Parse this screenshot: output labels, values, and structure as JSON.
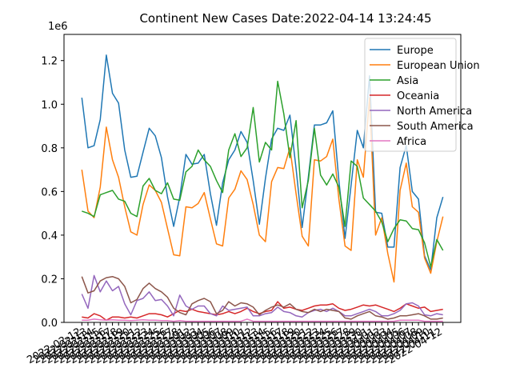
{
  "chart_data": {
    "type": "line",
    "title": "Continent New Cases Date:2022-04-14 13:24:45",
    "xlabel": "",
    "ylabel": "",
    "y_offset_label": "1e6",
    "ylim": [
      0,
      1320000
    ],
    "y_ticks": [
      0.0,
      0.2,
      0.4,
      0.6,
      0.8,
      1.0,
      1.2
    ],
    "grid": false,
    "legend_position": "top-right",
    "x_tick_labels": [
      "2022-02-12",
      "2022-02-13",
      "2022-02-14",
      "2022-02-15",
      "2022-02-16",
      "2022-02-17",
      "2022-02-18",
      "2022-02-19",
      "2022-02-20",
      "2022-02-21",
      "2022-02-22",
      "2022-02-23",
      "2022-02-24",
      "2022-02-25",
      "2022-02-26",
      "2022-02-27",
      "2022-02-28",
      "2022-03-01",
      "2022-03-02",
      "2022-03-03",
      "2022-03-04",
      "2022-03-05",
      "2022-03-06",
      "2022-03-07",
      "2022-03-08",
      "2022-03-09",
      "2022-03-10",
      "2022-03-11",
      "2022-03-12",
      "2022-03-13",
      "2022-03-14",
      "2022-03-15",
      "2022-03-16",
      "2022-03-17",
      "2022-03-18",
      "2022-03-19",
      "2022-03-20",
      "2022-03-21",
      "2022-03-22",
      "2022-03-23",
      "2022-03-24",
      "2022-03-25",
      "2022-03-26",
      "2022-03-27",
      "2022-03-28",
      "2022-03-29",
      "2022-03-30",
      "2022-03-31",
      "2022-04-01",
      "2022-04-02",
      "2022-04-03",
      "2022-04-04",
      "2022-04-05",
      "2022-04-06",
      "2022-04-07",
      "2022-04-08",
      "2022-04-09",
      "2022-04-10",
      "2022-04-11",
      "2022-04-12"
    ],
    "series": [
      {
        "name": "Europe",
        "color": "#1f77b4",
        "values": [
          1030000,
          800000,
          810000,
          930000,
          1225000,
          1050000,
          1005000,
          790000,
          665000,
          670000,
          780000,
          890000,
          855000,
          755000,
          575000,
          440000,
          575000,
          770000,
          725000,
          730000,
          770000,
          590000,
          445000,
          640000,
          745000,
          790000,
          875000,
          825000,
          650000,
          450000,
          660000,
          840000,
          890000,
          880000,
          950000,
          705000,
          435000,
          665000,
          905000,
          905000,
          915000,
          970000,
          650000,
          385000,
          630000,
          880000,
          800000,
          1130000,
          505000,
          500000,
          345000,
          345000,
          710000,
          810000,
          600000,
          565000,
          305000,
          240000,
          480000,
          575000
        ]
      },
      {
        "name": "European Union",
        "color": "#ff7f0e",
        "values": [
          700000,
          510000,
          480000,
          620000,
          895000,
          745000,
          665000,
          530000,
          415000,
          400000,
          540000,
          630000,
          605000,
          550000,
          430000,
          310000,
          305000,
          530000,
          525000,
          545000,
          595000,
          475000,
          360000,
          350000,
          570000,
          610000,
          695000,
          655000,
          540000,
          400000,
          370000,
          645000,
          710000,
          705000,
          800000,
          590000,
          395000,
          350000,
          745000,
          740000,
          760000,
          840000,
          565000,
          350000,
          330000,
          745000,
          665000,
          1030000,
          400000,
          480000,
          315000,
          185000,
          605000,
          730000,
          530000,
          505000,
          295000,
          225000,
          370000,
          485000
        ]
      },
      {
        "name": "Asia",
        "color": "#2ca02c",
        "values": [
          510000,
          500000,
          485000,
          585000,
          595000,
          605000,
          565000,
          555000,
          500000,
          485000,
          625000,
          660000,
          605000,
          590000,
          640000,
          565000,
          560000,
          690000,
          715000,
          790000,
          745000,
          715000,
          650000,
          595000,
          790000,
          865000,
          760000,
          800000,
          985000,
          735000,
          825000,
          790000,
          1105000,
          955000,
          755000,
          925000,
          525000,
          650000,
          890000,
          675000,
          630000,
          680000,
          620000,
          440000,
          740000,
          715000,
          570000,
          540000,
          510000,
          460000,
          370000,
          430000,
          470000,
          465000,
          430000,
          425000,
          365000,
          255000,
          380000,
          330000
        ]
      },
      {
        "name": "Oceania",
        "color": "#d62728",
        "values": [
          25000,
          20000,
          40000,
          30000,
          10000,
          25000,
          25000,
          20000,
          25000,
          20000,
          30000,
          40000,
          40000,
          35000,
          25000,
          40000,
          55000,
          50000,
          60000,
          50000,
          45000,
          40000,
          35000,
          40000,
          50000,
          40000,
          50000,
          65000,
          50000,
          40000,
          50000,
          55000,
          95000,
          65000,
          70000,
          60000,
          55000,
          65000,
          75000,
          80000,
          80000,
          85000,
          65000,
          55000,
          60000,
          70000,
          80000,
          75000,
          80000,
          70000,
          60000,
          50000,
          65000,
          85000,
          75000,
          65000,
          70000,
          50000,
          55000,
          60000
        ]
      },
      {
        "name": "North America",
        "color": "#9467bd",
        "values": [
          130000,
          65000,
          215000,
          140000,
          190000,
          145000,
          165000,
          85000,
          35000,
          100000,
          110000,
          140000,
          100000,
          105000,
          75000,
          30000,
          125000,
          75000,
          60000,
          75000,
          75000,
          40000,
          30000,
          75000,
          55000,
          60000,
          65000,
          70000,
          30000,
          30000,
          40000,
          45000,
          70000,
          50000,
          45000,
          30000,
          25000,
          45000,
          55000,
          60000,
          50000,
          65000,
          50000,
          30000,
          30000,
          40000,
          50000,
          60000,
          50000,
          30000,
          30000,
          40000,
          55000,
          85000,
          90000,
          75000,
          35000,
          30000,
          40000,
          35000
        ]
      },
      {
        "name": "South America",
        "color": "#8c564b",
        "values": [
          210000,
          135000,
          145000,
          190000,
          205000,
          210000,
          200000,
          165000,
          90000,
          105000,
          155000,
          180000,
          155000,
          140000,
          115000,
          65000,
          45000,
          35000,
          85000,
          100000,
          110000,
          95000,
          40000,
          55000,
          95000,
          75000,
          90000,
          85000,
          70000,
          35000,
          55000,
          70000,
          80000,
          70000,
          85000,
          60000,
          50000,
          45000,
          60000,
          50000,
          60000,
          55000,
          50000,
          20000,
          15000,
          30000,
          40000,
          50000,
          30000,
          25000,
          15000,
          20000,
          30000,
          30000,
          35000,
          40000,
          30000,
          15000,
          15000,
          20000
        ]
      },
      {
        "name": "Africa",
        "color": "#e377c2",
        "values": [
          10000,
          10000,
          15000,
          12000,
          10000,
          12000,
          10000,
          10000,
          8000,
          10000,
          12000,
          10000,
          10000,
          8000,
          8000,
          5000,
          8000,
          5000,
          5000,
          5000,
          5000,
          5000,
          5000,
          5000,
          5000,
          5000,
          5000,
          15000,
          5000,
          5000,
          5000,
          5000,
          5000,
          5000,
          5000,
          5000,
          5000,
          5000,
          5000,
          5000,
          5000,
          5000,
          5000,
          5000,
          5000,
          5000,
          5000,
          5000,
          5000,
          5000,
          5000,
          5000,
          10000,
          10000,
          10000,
          10000,
          5000,
          5000,
          5000,
          5000
        ]
      }
    ]
  }
}
